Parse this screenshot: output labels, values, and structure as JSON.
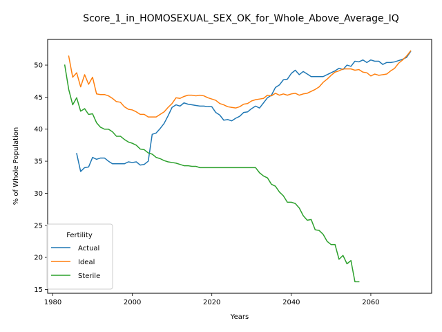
{
  "chart_data": {
    "type": "line",
    "title": "Score_1_in_HOMOSEXUAL_SEX_OK_for_Whole_Above_Average_IQ",
    "xlabel": "Years",
    "ylabel": "% of Whole Population",
    "xlim": [
      1978.7,
      2075.3
    ],
    "ylim": [
      14.4,
      54.0
    ],
    "xticks": [
      1980,
      2000,
      2020,
      2040,
      2060
    ],
    "yticks": [
      15,
      20,
      25,
      30,
      35,
      40,
      45,
      50
    ],
    "grid": false,
    "legend": {
      "title": "Fertility",
      "placement": "lower-left"
    },
    "series": [
      {
        "name": "Actual",
        "color": "#1f77b4",
        "x": [
          1986,
          1987,
          1988,
          1989,
          1990,
          1991,
          1992,
          1993,
          1994,
          1995,
          1996,
          1997,
          1998,
          1999,
          2000,
          2001,
          2002,
          2003,
          2004,
          2005,
          2006,
          2007,
          2008,
          2009,
          2010,
          2011,
          2012,
          2013,
          2014,
          2015,
          2016,
          2017,
          2018,
          2019,
          2020,
          2021,
          2022,
          2023,
          2024,
          2025,
          2026,
          2027,
          2028,
          2029,
          2030,
          2031,
          2032,
          2033,
          2034,
          2035,
          2036,
          2037,
          2038,
          2039,
          2040,
          2041,
          2042,
          2043,
          2044,
          2045,
          2046,
          2047,
          2048,
          2049,
          2050,
          2051,
          2052,
          2053,
          2054,
          2055,
          2056,
          2057,
          2058,
          2059,
          2060,
          2061,
          2062,
          2063,
          2064,
          2065,
          2066,
          2067,
          2068,
          2069,
          2070
        ],
        "y": [
          36.2,
          33.4,
          34.0,
          34.1,
          35.6,
          35.3,
          35.5,
          35.5,
          35.0,
          34.6,
          34.6,
          34.6,
          34.6,
          34.9,
          34.8,
          34.9,
          34.4,
          34.5,
          35.0,
          39.2,
          39.4,
          40.1,
          40.9,
          42.1,
          43.4,
          43.8,
          43.6,
          44.1,
          43.9,
          43.8,
          43.7,
          43.6,
          43.6,
          43.5,
          43.5,
          42.6,
          42.2,
          41.4,
          41.5,
          41.3,
          41.7,
          42.0,
          42.6,
          42.7,
          43.2,
          43.6,
          43.3,
          44.1,
          44.9,
          45.3,
          46.5,
          46.9,
          47.7,
          47.8,
          48.7,
          49.2,
          48.5,
          49.0,
          48.6,
          48.2,
          48.2,
          48.2,
          48.2,
          48.5,
          48.8,
          49.1,
          49.5,
          49.3,
          50.0,
          49.8,
          50.6,
          50.5,
          50.8,
          50.4,
          50.8,
          50.6,
          50.6,
          50.1,
          50.4,
          50.4,
          50.5,
          50.7,
          50.9,
          51.2,
          52.1
        ]
      },
      {
        "name": "Ideal",
        "color": "#ff7f0e",
        "x": [
          1984,
          1985,
          1986,
          1987,
          1988,
          1989,
          1990,
          1991,
          1992,
          1993,
          1994,
          1995,
          1996,
          1997,
          1998,
          1999,
          2000,
          2001,
          2002,
          2003,
          2004,
          2005,
          2006,
          2007,
          2008,
          2009,
          2010,
          2011,
          2012,
          2013,
          2014,
          2015,
          2016,
          2017,
          2018,
          2019,
          2020,
          2021,
          2022,
          2023,
          2024,
          2025,
          2026,
          2027,
          2028,
          2029,
          2030,
          2031,
          2032,
          2033,
          2034,
          2035,
          2036,
          2037,
          2038,
          2039,
          2040,
          2041,
          2042,
          2043,
          2044,
          2045,
          2046,
          2047,
          2048,
          2049,
          2050,
          2051,
          2052,
          2053,
          2054,
          2055,
          2056,
          2057,
          2058,
          2059,
          2060,
          2061,
          2062,
          2063,
          2064,
          2065,
          2066,
          2067,
          2068,
          2069,
          2070
        ],
        "y": [
          51.4,
          48.1,
          48.8,
          46.6,
          48.5,
          47.0,
          48.1,
          45.5,
          45.4,
          45.4,
          45.2,
          44.8,
          44.3,
          44.2,
          43.5,
          43.1,
          43.0,
          42.7,
          42.3,
          42.3,
          41.9,
          41.9,
          41.9,
          42.3,
          42.7,
          43.4,
          44.0,
          44.9,
          44.8,
          45.1,
          45.3,
          45.3,
          45.2,
          45.3,
          45.2,
          44.9,
          44.7,
          44.5,
          44.0,
          43.8,
          43.5,
          43.4,
          43.3,
          43.5,
          43.9,
          44.0,
          44.4,
          44.6,
          44.7,
          44.8,
          45.3,
          45.2,
          45.6,
          45.3,
          45.5,
          45.3,
          45.5,
          45.6,
          45.3,
          45.5,
          45.6,
          45.9,
          46.2,
          46.6,
          47.3,
          47.8,
          48.4,
          48.9,
          49.1,
          49.4,
          49.4,
          49.4,
          49.2,
          49.3,
          48.9,
          48.8,
          48.3,
          48.6,
          48.4,
          48.5,
          48.6,
          49.1,
          49.5,
          50.3,
          50.8,
          51.4,
          52.2
        ]
      },
      {
        "name": "Sterile",
        "color": "#2ca02c",
        "x": [
          1983,
          1984,
          1985,
          1986,
          1987,
          1988,
          1989,
          1990,
          1991,
          1992,
          1993,
          1994,
          1995,
          1996,
          1997,
          1998,
          1999,
          2000,
          2001,
          2002,
          2003,
          2004,
          2005,
          2006,
          2007,
          2008,
          2009,
          2010,
          2011,
          2012,
          2013,
          2014,
          2015,
          2016,
          2017,
          2018,
          2019,
          2020,
          2021,
          2022,
          2023,
          2024,
          2025,
          2026,
          2027,
          2028,
          2029,
          2030,
          2031,
          2032,
          2033,
          2034,
          2035,
          2036,
          2037,
          2038,
          2039,
          2040,
          2041,
          2042,
          2043,
          2044,
          2045,
          2046,
          2047,
          2048,
          2049,
          2050,
          2051,
          2052,
          2053,
          2054,
          2055,
          2056,
          2057
        ],
        "y": [
          50.0,
          46.2,
          43.8,
          44.9,
          42.8,
          43.2,
          42.3,
          42.4,
          41.0,
          40.3,
          40.0,
          40.0,
          39.6,
          38.9,
          38.9,
          38.4,
          38.0,
          37.8,
          37.5,
          36.9,
          36.8,
          36.3,
          36.1,
          35.6,
          35.4,
          35.1,
          34.9,
          34.8,
          34.7,
          34.5,
          34.3,
          34.3,
          34.2,
          34.2,
          34.0,
          34.0,
          34.0,
          34.0,
          34.0,
          34.0,
          34.0,
          34.0,
          34.0,
          34.0,
          34.0,
          34.0,
          34.0,
          34.0,
          34.0,
          33.2,
          32.7,
          32.4,
          31.4,
          31.1,
          30.2,
          29.6,
          28.6,
          28.6,
          28.4,
          27.7,
          26.5,
          25.8,
          25.9,
          24.3,
          24.2,
          23.6,
          22.5,
          22.0,
          22.0,
          19.7,
          20.3,
          19.0,
          19.5,
          16.2,
          16.2
        ]
      }
    ]
  }
}
